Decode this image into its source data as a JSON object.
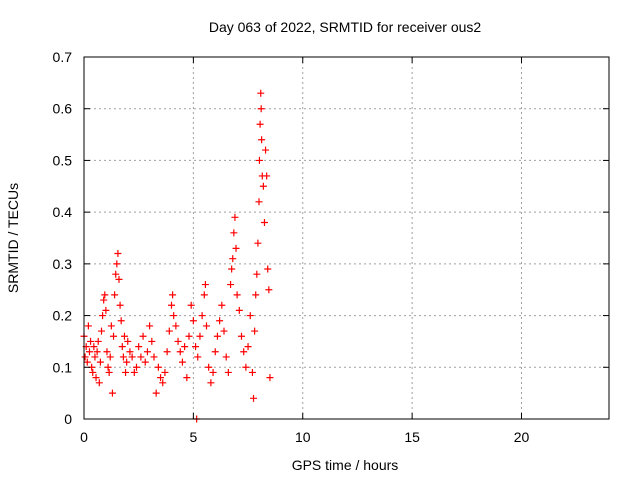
{
  "chart_data": {
    "type": "scatter",
    "title": "Day 063 of 2022, SRMTID for receiver ous2",
    "xlabel": "GPS time / hours",
    "ylabel": "SRMTID / TECUs",
    "xlim": [
      0,
      24
    ],
    "ylim": [
      0,
      0.7
    ],
    "x_ticks": [
      0,
      5,
      10,
      15,
      20
    ],
    "x_tick_labels": [
      "0",
      "5",
      "10",
      "15",
      "20"
    ],
    "y_ticks": [
      0,
      0.1,
      0.2,
      0.3,
      0.4,
      0.5,
      0.6,
      0.7
    ],
    "y_tick_labels": [
      "0",
      "0.1",
      "0.2",
      "0.3",
      "0.4",
      "0.5",
      "0.6",
      "0.7"
    ],
    "grid": true,
    "marker": "+",
    "marker_color": "#ff0000",
    "series": [
      {
        "name": "SRMTID",
        "points": [
          [
            0.0,
            0.16
          ],
          [
            0.05,
            0.12
          ],
          [
            0.1,
            0.14
          ],
          [
            0.15,
            0.11
          ],
          [
            0.2,
            0.18
          ],
          [
            0.25,
            0.13
          ],
          [
            0.3,
            0.15
          ],
          [
            0.35,
            0.1
          ],
          [
            0.4,
            0.09
          ],
          [
            0.45,
            0.14
          ],
          [
            0.5,
            0.12
          ],
          [
            0.55,
            0.08
          ],
          [
            0.6,
            0.13
          ],
          [
            0.65,
            0.15
          ],
          [
            0.7,
            0.07
          ],
          [
            0.75,
            0.11
          ],
          [
            0.8,
            0.17
          ],
          [
            0.85,
            0.2
          ],
          [
            0.9,
            0.23
          ],
          [
            0.95,
            0.24
          ],
          [
            1.0,
            0.21
          ],
          [
            1.05,
            0.13
          ],
          [
            1.1,
            0.1
          ],
          [
            1.15,
            0.09
          ],
          [
            1.2,
            0.12
          ],
          [
            1.25,
            0.18
          ],
          [
            1.3,
            0.05
          ],
          [
            1.35,
            0.16
          ],
          [
            1.4,
            0.24
          ],
          [
            1.45,
            0.28
          ],
          [
            1.5,
            0.3
          ],
          [
            1.55,
            0.32
          ],
          [
            1.6,
            0.27
          ],
          [
            1.65,
            0.22
          ],
          [
            1.7,
            0.19
          ],
          [
            1.75,
            0.14
          ],
          [
            1.8,
            0.12
          ],
          [
            1.85,
            0.16
          ],
          [
            1.9,
            0.09
          ],
          [
            1.95,
            0.11
          ],
          [
            2.0,
            0.15
          ],
          [
            2.1,
            0.13
          ],
          [
            2.2,
            0.12
          ],
          [
            2.3,
            0.09
          ],
          [
            2.4,
            0.1
          ],
          [
            2.5,
            0.14
          ],
          [
            2.6,
            0.12
          ],
          [
            2.7,
            0.16
          ],
          [
            2.8,
            0.11
          ],
          [
            2.9,
            0.13
          ],
          [
            3.0,
            0.18
          ],
          [
            3.1,
            0.15
          ],
          [
            3.2,
            0.12
          ],
          [
            3.3,
            0.05
          ],
          [
            3.4,
            0.1
          ],
          [
            3.5,
            0.08
          ],
          [
            3.6,
            0.07
          ],
          [
            3.7,
            0.09
          ],
          [
            3.8,
            0.13
          ],
          [
            3.9,
            0.17
          ],
          [
            4.0,
            0.22
          ],
          [
            4.05,
            0.24
          ],
          [
            4.1,
            0.2
          ],
          [
            4.2,
            0.18
          ],
          [
            4.3,
            0.15
          ],
          [
            4.4,
            0.13
          ],
          [
            4.5,
            0.11
          ],
          [
            4.6,
            0.14
          ],
          [
            4.7,
            0.08
          ],
          [
            4.8,
            0.16
          ],
          [
            4.9,
            0.22
          ],
          [
            5.0,
            0.19
          ],
          [
            5.1,
            0.14
          ],
          [
            5.15,
            0.0
          ],
          [
            5.2,
            0.12
          ],
          [
            5.3,
            0.16
          ],
          [
            5.4,
            0.2
          ],
          [
            5.5,
            0.24
          ],
          [
            5.55,
            0.26
          ],
          [
            5.6,
            0.18
          ],
          [
            5.7,
            0.1
          ],
          [
            5.8,
            0.07
          ],
          [
            5.9,
            0.09
          ],
          [
            6.0,
            0.13
          ],
          [
            6.1,
            0.16
          ],
          [
            6.2,
            0.19
          ],
          [
            6.3,
            0.22
          ],
          [
            6.4,
            0.17
          ],
          [
            6.5,
            0.12
          ],
          [
            6.6,
            0.09
          ],
          [
            6.7,
            0.26
          ],
          [
            6.75,
            0.29
          ],
          [
            6.8,
            0.31
          ],
          [
            6.85,
            0.36
          ],
          [
            6.9,
            0.39
          ],
          [
            6.95,
            0.33
          ],
          [
            7.0,
            0.24
          ],
          [
            7.1,
            0.21
          ],
          [
            7.2,
            0.16
          ],
          [
            7.3,
            0.13
          ],
          [
            7.4,
            0.1
          ],
          [
            7.5,
            0.14
          ],
          [
            7.6,
            0.2
          ],
          [
            7.7,
            0.09
          ],
          [
            7.75,
            0.04
          ],
          [
            7.8,
            0.17
          ],
          [
            7.85,
            0.24
          ],
          [
            7.9,
            0.28
          ],
          [
            7.95,
            0.34
          ],
          [
            8.0,
            0.42
          ],
          [
            8.02,
            0.5
          ],
          [
            8.05,
            0.57
          ],
          [
            8.08,
            0.63
          ],
          [
            8.1,
            0.6
          ],
          [
            8.12,
            0.54
          ],
          [
            8.15,
            0.47
          ],
          [
            8.2,
            0.45
          ],
          [
            8.25,
            0.38
          ],
          [
            8.3,
            0.52
          ],
          [
            8.35,
            0.47
          ],
          [
            8.4,
            0.29
          ],
          [
            8.45,
            0.25
          ],
          [
            8.5,
            0.08
          ]
        ]
      }
    ]
  }
}
